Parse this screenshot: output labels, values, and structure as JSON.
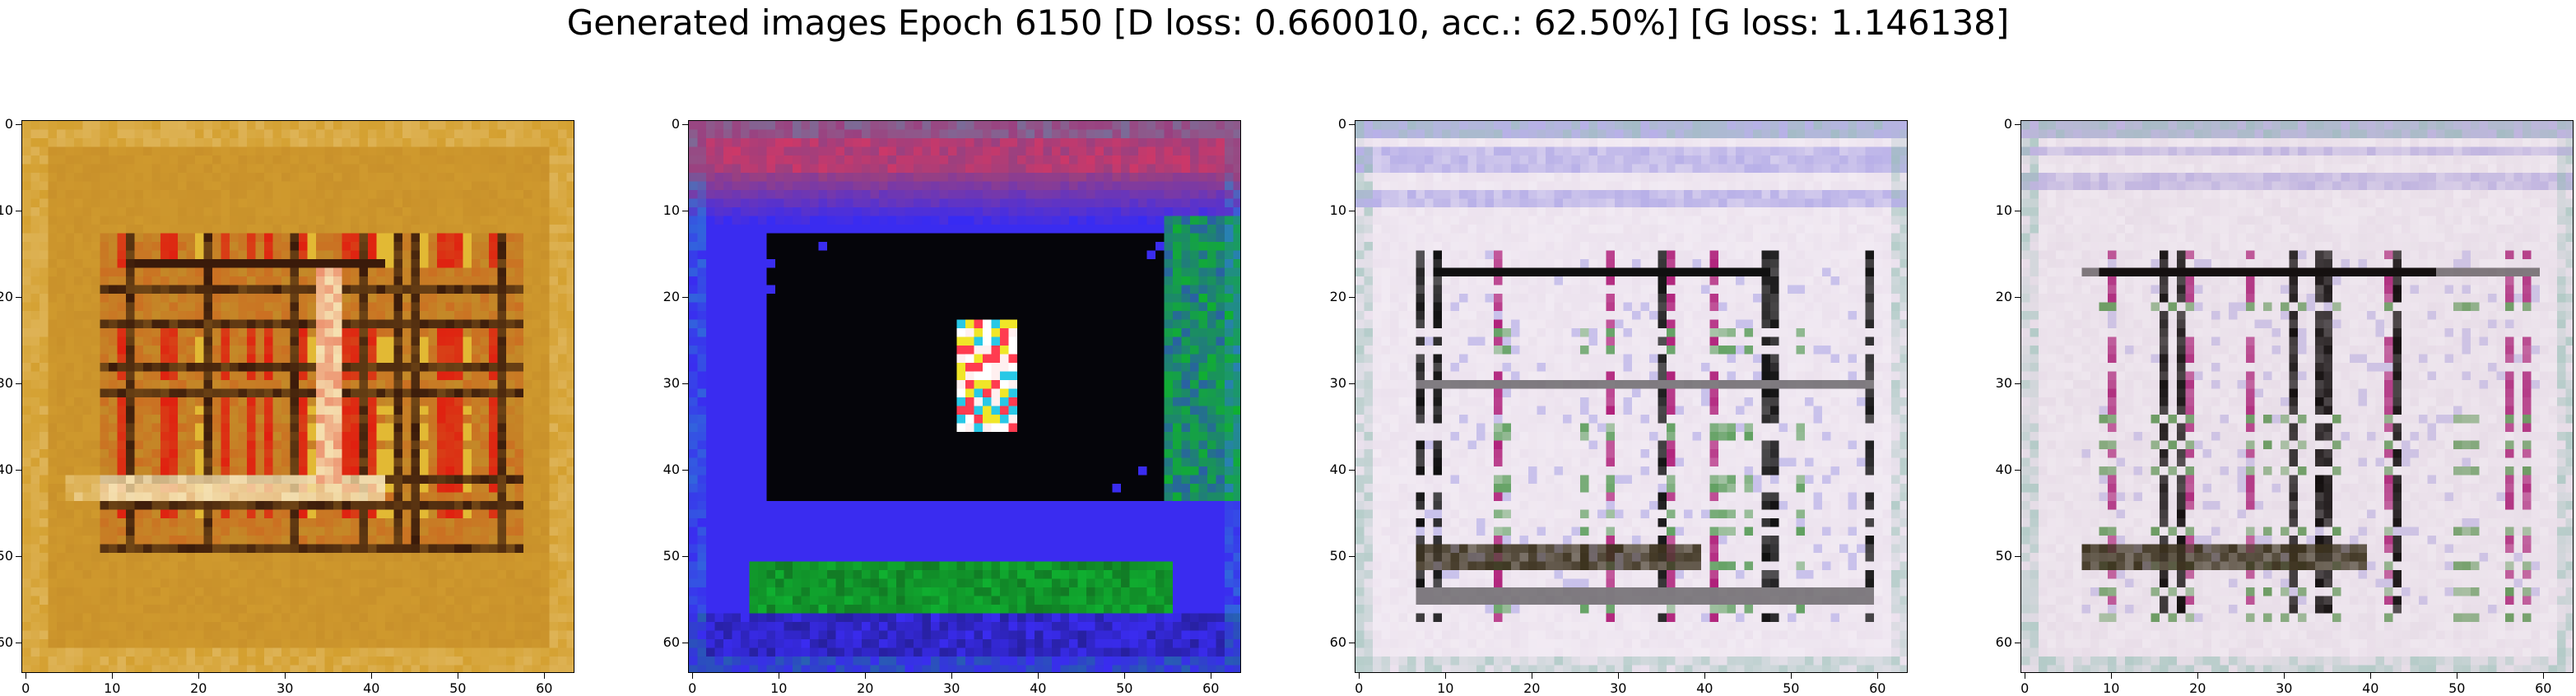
{
  "figure": {
    "title": "Generated images Epoch 6150 [D loss: 0.660010, acc.: 62.50%] [G loss: 1.146138]"
  },
  "axes": {
    "xticks": [
      "0",
      "10",
      "20",
      "30",
      "40",
      "50",
      "60"
    ],
    "yticks": [
      "0",
      "10",
      "20",
      "30",
      "40",
      "50",
      "60"
    ],
    "x_ticks_values": [
      0,
      10,
      20,
      30,
      40,
      50,
      60
    ],
    "y_ticks_values": [
      0,
      10,
      20,
      30,
      40,
      50,
      60
    ],
    "image_size": 64
  },
  "panels": [
    {
      "description_colors": {
        "base": "#c48a28",
        "frame": "#d4a030",
        "accent_red": "#e02010",
        "accent_yellow": "#f2d23a",
        "dark": "#3a1a0a",
        "light": "#f5e0b0"
      }
    },
    {
      "description_colors": {
        "base": "#3a2cf0",
        "center": "#000000",
        "green": "#10b030",
        "top": "#9a4080",
        "accent": "#ff3050"
      }
    },
    {
      "description_colors": {
        "base": "#ece2ee",
        "stripe": "#b8b0e8",
        "dark": "#101010",
        "magenta": "#b0207a",
        "green": "#60a060"
      }
    },
    {
      "description_colors": {
        "base": "#e8dde8",
        "stripe": "#c0b4e0",
        "dark": "#151010",
        "magenta": "#b03080",
        "green": "#6a9a60"
      }
    }
  ]
}
